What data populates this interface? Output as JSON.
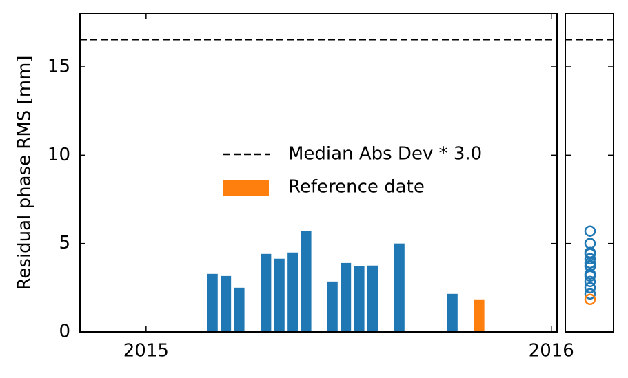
{
  "chart_data": {
    "type": "bar",
    "y_label": "Residual phase RMS [mm]",
    "x": [
      2015.164,
      2015.197,
      2015.23,
      2015.296,
      2015.329,
      2015.362,
      2015.395,
      2015.46,
      2015.493,
      2015.526,
      2015.559,
      2015.625,
      2015.756,
      2015.822
    ],
    "values": [
      3.28,
      3.16,
      2.5,
      4.41,
      4.14,
      4.49,
      5.7,
      2.85,
      3.9,
      3.71,
      3.75,
      5.0,
      2.15,
      1.84
    ],
    "colors": [
      "#1f77b4",
      "#1f77b4",
      "#1f77b4",
      "#1f77b4",
      "#1f77b4",
      "#1f77b4",
      "#1f77b4",
      "#1f77b4",
      "#1f77b4",
      "#1f77b4",
      "#1f77b4",
      "#1f77b4",
      "#1f77b4",
      "#ff7f0e"
    ],
    "threshold": {
      "label": "Median Abs Dev * 3.0",
      "value": 16.55,
      "color": "#000000"
    },
    "legend_patch": {
      "label": "Reference date",
      "color": "#ff7f0e"
    },
    "xlim": [
      2014.837,
      2016.014
    ],
    "xticks": [
      2015,
      2016
    ],
    "ylim": [
      0,
      18
    ],
    "yticks": [
      0,
      5,
      10,
      15
    ]
  }
}
